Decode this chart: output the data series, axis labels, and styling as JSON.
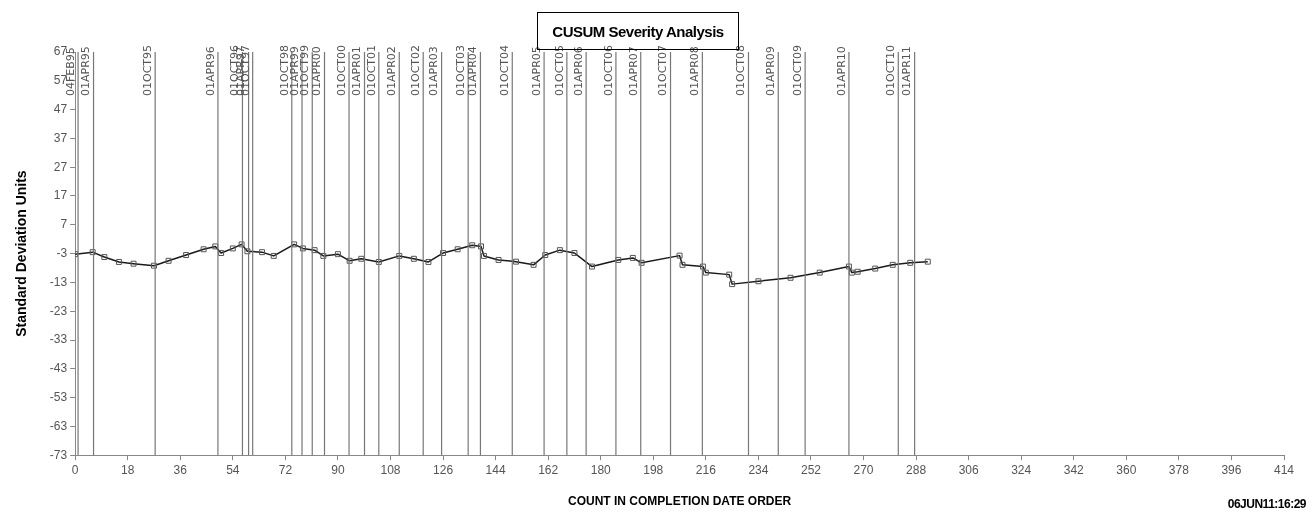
{
  "chart_data": {
    "type": "line",
    "title": "CUSUM Severity Analysis",
    "xlabel": "COUNT IN COMPLETION DATE ORDER",
    "ylabel": "Standard Deviation Units",
    "annotations": [
      "06JUN11:16:29"
    ],
    "xlim": [
      0,
      414
    ],
    "xticks": [
      0,
      18,
      36,
      54,
      72,
      90,
      108,
      126,
      144,
      162,
      180,
      198,
      216,
      234,
      252,
      270,
      288,
      306,
      324,
      342,
      360,
      378,
      396,
      414
    ],
    "ylim": [
      -73,
      67
    ],
    "yticks": [
      -73,
      -63,
      -53,
      -43,
      -33,
      -23,
      -13,
      -3,
      7,
      17,
      27,
      37,
      47,
      57,
      67
    ],
    "grid": false,
    "legend": false,
    "marker": "square",
    "line_style": "solid",
    "series": [
      {
        "color": "#1a1a1a",
        "x": [
          0,
          6,
          10,
          15,
          20,
          27,
          32,
          38,
          44,
          48,
          50,
          54,
          57,
          59,
          64,
          68,
          75,
          78,
          82,
          85,
          90,
          94,
          98,
          104,
          111,
          116,
          121,
          126,
          131,
          136,
          139,
          140,
          145,
          151,
          157,
          161,
          166,
          171,
          177,
          186,
          191,
          194,
          207,
          208,
          215,
          216,
          224,
          225,
          234,
          245,
          255,
          265,
          266,
          268,
          274,
          280,
          286,
          292
        ],
        "values": [
          -3.2,
          -2.5,
          -4.2,
          -5.9,
          -6.5,
          -7.2,
          -5.5,
          -3.5,
          -1.5,
          -0.5,
          -2.8,
          -1.2,
          0.2,
          -2.2,
          -2.5,
          -3.8,
          0.2,
          -1.2,
          -1.8,
          -3.8,
          -3.2,
          -5.5,
          -4.8,
          -5.9,
          -3.8,
          -4.8,
          -5.9,
          -2.8,
          -1.5,
          -0.1,
          -0.5,
          -3.8,
          -5.2,
          -5.8,
          -6.9,
          -3.5,
          -1.8,
          -2.8,
          -7.5,
          -5.2,
          -4.5,
          -6.2,
          -3.7,
          -6.9,
          -7.5,
          -9.6,
          -10.3,
          -13.6,
          -12.6,
          -11.4,
          -9.6,
          -7.5,
          -9.6,
          -9.3,
          -8.2,
          -6.9,
          -6.2,
          -5.8
        ]
      }
    ],
    "ref_lines": [
      {
        "axis": "x",
        "value": 1,
        "label": "04FEB95"
      },
      {
        "axis": "x",
        "value": 6.3,
        "label": "01APR95"
      },
      {
        "axis": "x",
        "value": 27.4,
        "label": "01OCT95"
      },
      {
        "axis": "x",
        "value": 48.9,
        "label": "01APR96"
      },
      {
        "axis": "x",
        "value": 57.3,
        "label": "01OCT96"
      },
      {
        "axis": "x",
        "value": 59.4,
        "label": "01APR97"
      },
      {
        "axis": "x",
        "value": 60.8,
        "label": "01OCT97"
      },
      {
        "axis": "x",
        "value": 74.2,
        "label": "01OCT98"
      },
      {
        "axis": "x",
        "value": 77.7,
        "label": "01APR99"
      },
      {
        "axis": "x",
        "value": 81.2,
        "label": "01OCT99"
      },
      {
        "axis": "x",
        "value": 85.4,
        "label": "01APR00"
      },
      {
        "axis": "x",
        "value": 93.8,
        "label": "01OCT00"
      },
      {
        "axis": "x",
        "value": 99.1,
        "label": "01APR01"
      },
      {
        "axis": "x",
        "value": 104,
        "label": "01OCT01"
      },
      {
        "axis": "x",
        "value": 111,
        "label": "01APR02"
      },
      {
        "axis": "x",
        "value": 119.2,
        "label": "01OCT02"
      },
      {
        "axis": "x",
        "value": 125.5,
        "label": "01APR03"
      },
      {
        "axis": "x",
        "value": 134.6,
        "label": "01OCT03"
      },
      {
        "axis": "x",
        "value": 138.8,
        "label": "01APR04"
      },
      {
        "axis": "x",
        "value": 149.7,
        "label": "01OCT04"
      },
      {
        "axis": "x",
        "value": 160.6,
        "label": "01APR05"
      },
      {
        "axis": "x",
        "value": 168.4,
        "label": "01OCT05"
      },
      {
        "axis": "x",
        "value": 175,
        "label": "01APR06"
      },
      {
        "axis": "x",
        "value": 185.2,
        "label": "01OCT06"
      },
      {
        "axis": "x",
        "value": 193.7,
        "label": "01APR07"
      },
      {
        "axis": "x",
        "value": 203.9,
        "label": "01OCT07"
      },
      {
        "axis": "x",
        "value": 214.8,
        "label": "01APR08"
      },
      {
        "axis": "x",
        "value": 230.6,
        "label": "01OCT08"
      },
      {
        "axis": "x",
        "value": 240.8,
        "label": "01APR09"
      },
      {
        "axis": "x",
        "value": 250,
        "label": "01OCT09"
      },
      {
        "axis": "x",
        "value": 265,
        "label": "01APR10"
      },
      {
        "axis": "x",
        "value": 281.9,
        "label": "01OCT10"
      },
      {
        "axis": "x",
        "value": 287.5,
        "label": "01APR11"
      }
    ]
  }
}
